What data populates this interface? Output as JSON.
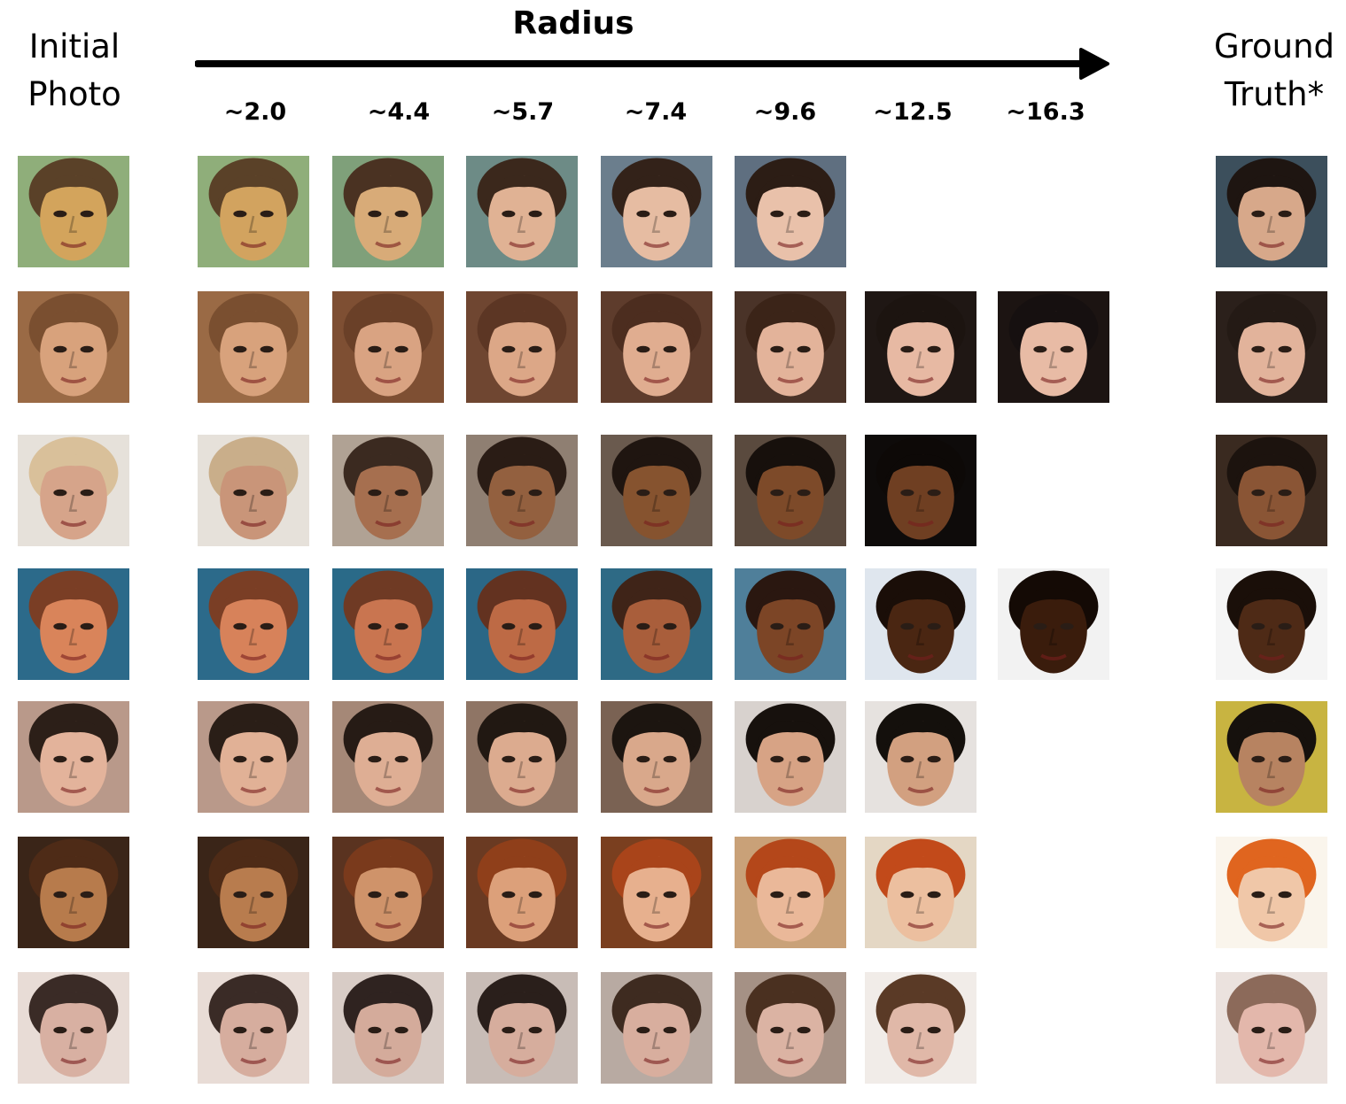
{
  "headers": {
    "initial_line1": "Initial",
    "initial_line2": "Photo",
    "radius": "Radius",
    "ground_truth_line1": "Ground",
    "ground_truth_line2": "Truth*"
  },
  "radius_labels": [
    "~2.0",
    "~4.4",
    "~5.7",
    "~7.4",
    "~9.6",
    "~12.5",
    "~16.3"
  ],
  "rows": [
    {
      "count": 5,
      "palette": [
        {
          "bg": "#8fae7a",
          "skin": "#d3a45c",
          "hair": "#5a4128"
        },
        {
          "bg": "#8fae7a",
          "skin": "#d2a35f",
          "hair": "#5a4128"
        },
        {
          "bg": "#7fa07a",
          "skin": "#d8ab78",
          "hair": "#4a3222"
        },
        {
          "bg": "#6d8b86",
          "skin": "#e0b294",
          "hair": "#3b281c"
        },
        {
          "bg": "#6b7e8d",
          "skin": "#e6bca2",
          "hair": "#332219"
        },
        {
          "bg": "#5f6f80",
          "skin": "#e9c1aa",
          "hair": "#2c1d15"
        }
      ],
      "gt": {
        "bg": "#3c4f5c",
        "skin": "#d7a88a",
        "hair": "#1e1511"
      }
    },
    {
      "count": 7,
      "palette": [
        {
          "bg": "#9a6a45",
          "skin": "#d8a27c",
          "hair": "#7a4f30"
        },
        {
          "bg": "#9a6a45",
          "skin": "#d8a27c",
          "hair": "#7a4f30"
        },
        {
          "bg": "#7e4f33",
          "skin": "#d9a382",
          "hair": "#6a4028"
        },
        {
          "bg": "#6f4631",
          "skin": "#dca787",
          "hair": "#5c3624"
        },
        {
          "bg": "#5e3c2c",
          "skin": "#e0ad90",
          "hair": "#4c2d1f"
        },
        {
          "bg": "#4a3328",
          "skin": "#e3b39a",
          "hair": "#3b2418"
        },
        {
          "bg": "#1f1714",
          "skin": "#e7b9a3",
          "hair": "#1c1410"
        },
        {
          "bg": "#1c1412",
          "skin": "#e8bba5",
          "hair": "#161010"
        }
      ],
      "gt": {
        "bg": "#2b201b",
        "skin": "#e2b39b",
        "hair": "#241a15"
      }
    },
    {
      "count": 6,
      "palette": [
        {
          "bg": "#e6e1da",
          "skin": "#d6a48a",
          "hair": "#d9c09a"
        },
        {
          "bg": "#e6e1da",
          "skin": "#c99579",
          "hair": "#c9ae8a"
        },
        {
          "bg": "#b0a294",
          "skin": "#a66f4f",
          "hair": "#3b2a20"
        },
        {
          "bg": "#8f7f72",
          "skin": "#93603f",
          "hair": "#2a1c15"
        },
        {
          "bg": "#6a5a4e",
          "skin": "#86532f",
          "hair": "#1f1510"
        },
        {
          "bg": "#5a4a3e",
          "skin": "#7d4a29",
          "hair": "#17100c"
        },
        {
          "bg": "#0e0b0a",
          "skin": "#6f3f22",
          "hair": "#0d0907"
        }
      ],
      "gt": {
        "bg": "#3a2a20",
        "skin": "#8a5535",
        "hair": "#1c130e"
      }
    },
    {
      "count": 7,
      "palette": [
        {
          "bg": "#2c6a8a",
          "skin": "#d9845a",
          "hair": "#7a3e25"
        },
        {
          "bg": "#2c6a8a",
          "skin": "#d7825a",
          "hair": "#7a3e25"
        },
        {
          "bg": "#2a6a88",
          "skin": "#c97550",
          "hair": "#6f3a24"
        },
        {
          "bg": "#2b6786",
          "skin": "#bd6a45",
          "hair": "#633220"
        },
        {
          "bg": "#2e6a85",
          "skin": "#a95e3b",
          "hair": "#3f2418"
        },
        {
          "bg": "#4f7f9a",
          "skin": "#7c4526",
          "hair": "#2a1710"
        },
        {
          "bg": "#dfe6ee",
          "skin": "#4a2612",
          "hair": "#1a0e08"
        },
        {
          "bg": "#f2f2f2",
          "skin": "#3a1c0c",
          "hair": "#140a05"
        }
      ],
      "gt": {
        "bg": "#f5f5f5",
        "skin": "#4e2a16",
        "hair": "#1a0f09"
      }
    },
    {
      "count": 6,
      "palette": [
        {
          "bg": "#b9998a",
          "skin": "#e3b39b",
          "hair": "#2c1f18"
        },
        {
          "bg": "#b9998a",
          "skin": "#e1b196",
          "hair": "#2a1e17"
        },
        {
          "bg": "#a58877",
          "skin": "#deae94",
          "hair": "#261b15"
        },
        {
          "bg": "#8f7565",
          "skin": "#dcab8f",
          "hair": "#211812"
        },
        {
          "bg": "#7a6253",
          "skin": "#d9a88b",
          "hair": "#1c1510"
        },
        {
          "bg": "#d8d2ce",
          "skin": "#d7a385",
          "hair": "#17110d"
        },
        {
          "bg": "#e6e2df",
          "skin": "#d2a080",
          "hair": "#14100c"
        }
      ],
      "gt": {
        "bg": "#c8b441",
        "skin": "#b78361",
        "hair": "#16110d"
      }
    },
    {
      "count": 6,
      "palette": [
        {
          "bg": "#3a2518",
          "skin": "#b77b4c",
          "hair": "#4e2b17"
        },
        {
          "bg": "#3a2518",
          "skin": "#b87c4e",
          "hair": "#4e2b17"
        },
        {
          "bg": "#5a3320",
          "skin": "#cf936a",
          "hair": "#7a3a1c"
        },
        {
          "bg": "#6a3a22",
          "skin": "#dca07a",
          "hair": "#8f3f1a"
        },
        {
          "bg": "#7a3f1f",
          "skin": "#e7b08e",
          "hair": "#a9441a"
        },
        {
          "bg": "#c9a178",
          "skin": "#eab899",
          "hair": "#b4471a"
        },
        {
          "bg": "#e4d7c4",
          "skin": "#ecbf9f",
          "hair": "#c24a1a"
        }
      ],
      "gt": {
        "bg": "#faf5ec",
        "skin": "#f0c7a8",
        "hair": "#e0651f"
      }
    },
    {
      "count": 6,
      "palette": [
        {
          "bg": "#e8dcd6",
          "skin": "#d8b0a2",
          "hair": "#3a2b26"
        },
        {
          "bg": "#e8dcd6",
          "skin": "#d6ad9e",
          "hair": "#3a2b26"
        },
        {
          "bg": "#d8ccc6",
          "skin": "#d4ab9b",
          "hair": "#2f2320"
        },
        {
          "bg": "#c8bcb6",
          "skin": "#d6ad9d",
          "hair": "#2a1f1b"
        },
        {
          "bg": "#b8aaa2",
          "skin": "#d8ae9e",
          "hair": "#3e2b20"
        },
        {
          "bg": "#a59185",
          "skin": "#dbb3a3",
          "hair": "#4a3020"
        },
        {
          "bg": "#f1ece8",
          "skin": "#e0b8a8",
          "hair": "#5a3a26"
        }
      ],
      "gt": {
        "bg": "#ebe2de",
        "skin": "#e3b7ab",
        "hair": "#8c6a5a"
      }
    }
  ]
}
